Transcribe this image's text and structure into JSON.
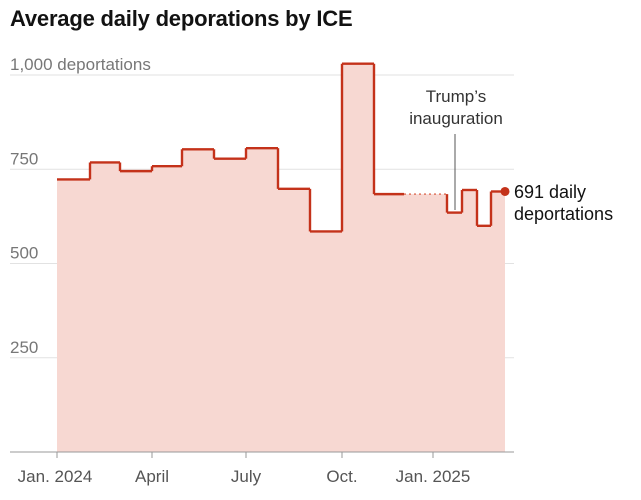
{
  "chart_data": {
    "type": "area",
    "title": "Average daily deporations by ICE",
    "xlabel": "",
    "ylabel": "",
    "ylim": [
      0,
      1000
    ],
    "y_ticks": [
      {
        "value": 250,
        "label": "250"
      },
      {
        "value": 500,
        "label": "500"
      },
      {
        "value": 750,
        "label": "750"
      },
      {
        "value": 1000,
        "label": "1,000 deportations"
      }
    ],
    "x_ticks": [
      "Jan. 2024",
      "April",
      "July",
      "Oct.",
      "Jan. 2025"
    ],
    "grid": "horizontal",
    "colors": {
      "line": "#c4321a",
      "fill": "#f7d8d2",
      "gap": "#e0765f",
      "grid": "#e2e2e2",
      "axis": "#999999"
    },
    "series": [
      {
        "values": [
          {
            "period": "2024-01",
            "value": 723
          },
          {
            "period": "2024-02",
            "value": 768
          },
          {
            "period": "2024-03",
            "value": 745
          },
          {
            "period": "2024-04",
            "value": 758
          },
          {
            "period": "2024-05",
            "value": 803
          },
          {
            "period": "2024-06",
            "value": 778
          },
          {
            "period": "2024-07",
            "value": 806
          },
          {
            "period": "2024-08",
            "value": 698
          },
          {
            "period": "2024-09",
            "value": 585
          },
          {
            "period": "2024-10",
            "value": 1030
          },
          {
            "period": "2024-11",
            "value": 684
          },
          {
            "period": "2024-12",
            "value": 684
          },
          {
            "period": "2025-01a",
            "value": 635
          },
          {
            "period": "2025-01b",
            "value": 695
          },
          {
            "period": "2025-02",
            "value": 600
          },
          {
            "period": "2025-03",
            "value": 691
          }
        ]
      }
    ],
    "annotations": [
      {
        "text_lines": [
          "Trump’s",
          "inauguration"
        ],
        "target": "2025-01-20"
      },
      {
        "text_lines": [
          "691 daily",
          "deportations"
        ],
        "target": "2025-03",
        "value": 691
      }
    ]
  }
}
